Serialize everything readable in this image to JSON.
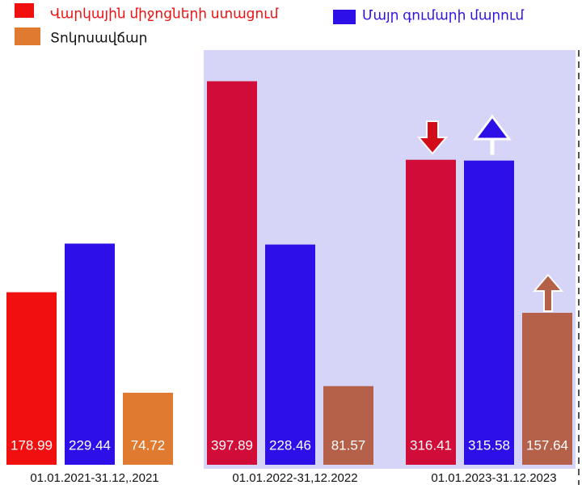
{
  "chart_data": {
    "type": "bar",
    "categories": [
      "01.01.2021-31.12,.2021",
      "01.01.2022-31,12.2022",
      "01.01.2023-31.12.2023"
    ],
    "series": [
      {
        "name": "Վարկային միջոցների ստացում",
        "color": "#f01010",
        "point_colors": [
          "#f01010",
          "#d20c38",
          "#d20c38"
        ],
        "values": [
          178.99,
          397.89,
          316.41
        ]
      },
      {
        "name": "Մայր գումարի մարում",
        "color": "#2d10e8",
        "point_colors": [
          "#2d10e8",
          "#2d10e8",
          "#2d10e8"
        ],
        "values": [
          229.44,
          228.46,
          315.58
        ]
      },
      {
        "name": "Տոկոսավճար",
        "color": "#e07a30",
        "point_colors": [
          "#e07a30",
          "#b5614a",
          "#b5614a"
        ],
        "values": [
          74.72,
          81.57,
          157.64
        ]
      }
    ],
    "ylim": [
      0,
      400
    ]
  }
}
